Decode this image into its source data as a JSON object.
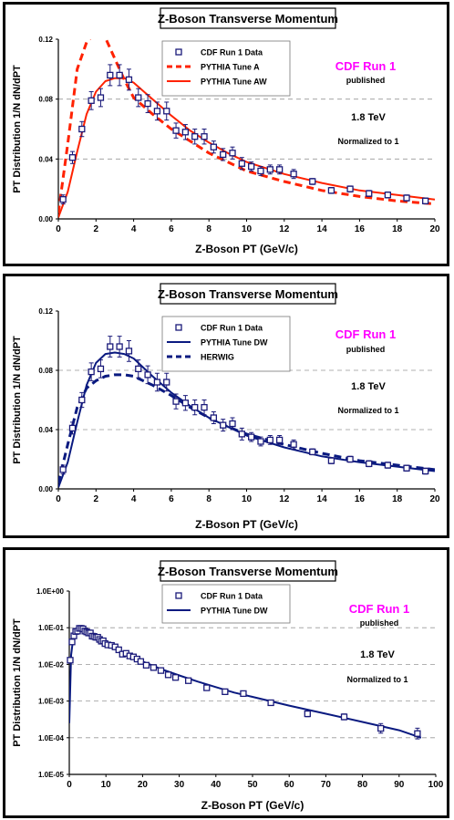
{
  "chart_data": [
    {
      "type": "scatter",
      "title": "Z-Boson Transverse Momentum",
      "xlabel": "Z-Boson PT (GeV/c)",
      "ylabel": "PT Distribution 1/N dN/dPT",
      "xlim": [
        0,
        20
      ],
      "ylim": [
        0,
        0.12
      ],
      "x_ticks": [
        "0",
        "2",
        "4",
        "6",
        "8",
        "10",
        "12",
        "14",
        "16",
        "18",
        "20"
      ],
      "y_ticks": [
        "0.00",
        "0.04",
        "0.08",
        "0.12"
      ],
      "log_scale": false,
      "grid": "horizontal dashed",
      "legend_position": "top-center",
      "annotations": [
        "CDF Run 1",
        "published",
        "1.8 TeV",
        "Normalized to 1"
      ],
      "series": [
        {
          "name": "CDF Run 1 Data",
          "kind": "points",
          "color": "#1a1a7a",
          "x": [
            0.25,
            0.75,
            1.25,
            1.75,
            2.25,
            2.75,
            3.25,
            3.75,
            4.25,
            4.75,
            5.25,
            5.75,
            6.25,
            6.75,
            7.25,
            7.75,
            8.25,
            8.75,
            9.25,
            9.75,
            10.25,
            10.75,
            11.25,
            11.75,
            12.5,
            13.5,
            14.5,
            15.5,
            16.5,
            17.5,
            18.5,
            19.5
          ],
          "y": [
            0.013,
            0.041,
            0.06,
            0.079,
            0.081,
            0.096,
            0.096,
            0.093,
            0.081,
            0.077,
            0.072,
            0.072,
            0.059,
            0.058,
            0.055,
            0.055,
            0.048,
            0.043,
            0.044,
            0.037,
            0.035,
            0.032,
            0.033,
            0.033,
            0.03,
            0.025,
            0.019,
            0.02,
            0.017,
            0.016,
            0.014,
            0.012
          ],
          "err": [
            0.003,
            0.004,
            0.005,
            0.006,
            0.006,
            0.007,
            0.007,
            0.007,
            0.006,
            0.006,
            0.006,
            0.006,
            0.005,
            0.005,
            0.005,
            0.005,
            0.004,
            0.004,
            0.004,
            0.004,
            0.003,
            0.003,
            0.003,
            0.003,
            0.003,
            0.002,
            0.002,
            0.002,
            0.002,
            0.002,
            0.002,
            0.002
          ]
        },
        {
          "name": "PYTHIA Tune A",
          "kind": "dashed",
          "color": "#ff2200",
          "x": [
            0,
            0.5,
            1,
            1.5,
            2,
            2.5,
            3,
            3.5,
            4,
            5,
            6,
            7,
            8,
            9,
            10,
            12,
            14,
            16,
            18,
            20
          ],
          "y": [
            0.004,
            0.05,
            0.1,
            0.118,
            0.125,
            0.121,
            0.107,
            0.093,
            0.081,
            0.07,
            0.06,
            0.052,
            0.044,
            0.038,
            0.032,
            0.025,
            0.019,
            0.015,
            0.012,
            0.01
          ]
        },
        {
          "name": "PYTHIA Tune AW",
          "kind": "solid",
          "color": "#ff2200",
          "x": [
            0,
            0.5,
            1,
            1.5,
            2,
            2.5,
            3,
            3.5,
            4,
            5,
            6,
            7,
            8,
            9,
            10,
            12,
            14,
            16,
            18,
            20
          ],
          "y": [
            0.001,
            0.018,
            0.045,
            0.07,
            0.085,
            0.092,
            0.094,
            0.094,
            0.091,
            0.08,
            0.069,
            0.059,
            0.051,
            0.044,
            0.038,
            0.03,
            0.024,
            0.019,
            0.016,
            0.013
          ]
        }
      ]
    },
    {
      "type": "scatter",
      "title": "Z-Boson Transverse Momentum",
      "xlabel": "Z-Boson PT (GeV/c)",
      "ylabel": "PT Distribution 1/N dN/dPT",
      "xlim": [
        0,
        20
      ],
      "ylim": [
        0,
        0.12
      ],
      "x_ticks": [
        "0",
        "2",
        "4",
        "6",
        "8",
        "10",
        "12",
        "14",
        "16",
        "18",
        "20"
      ],
      "y_ticks": [
        "0.00",
        "0.04",
        "0.08",
        "0.12"
      ],
      "log_scale": false,
      "grid": "horizontal dashed",
      "legend_position": "top-center",
      "annotations": [
        "CDF Run 1",
        "published",
        "1.8 TeV",
        "Normalized to 1"
      ],
      "series": [
        {
          "name": "CDF Run 1 Data",
          "kind": "points",
          "color": "#1a1a7a",
          "x": [
            0.25,
            0.75,
            1.25,
            1.75,
            2.25,
            2.75,
            3.25,
            3.75,
            4.25,
            4.75,
            5.25,
            5.75,
            6.25,
            6.75,
            7.25,
            7.75,
            8.25,
            8.75,
            9.25,
            9.75,
            10.25,
            10.75,
            11.25,
            11.75,
            12.5,
            13.5,
            14.5,
            15.5,
            16.5,
            17.5,
            18.5,
            19.5
          ],
          "y": [
            0.013,
            0.041,
            0.06,
            0.079,
            0.081,
            0.096,
            0.096,
            0.093,
            0.081,
            0.077,
            0.072,
            0.072,
            0.059,
            0.058,
            0.055,
            0.055,
            0.048,
            0.043,
            0.044,
            0.037,
            0.035,
            0.032,
            0.033,
            0.033,
            0.03,
            0.025,
            0.019,
            0.02,
            0.017,
            0.016,
            0.014,
            0.012
          ],
          "err": [
            0.003,
            0.004,
            0.005,
            0.006,
            0.006,
            0.007,
            0.007,
            0.007,
            0.006,
            0.006,
            0.006,
            0.006,
            0.005,
            0.005,
            0.005,
            0.005,
            0.004,
            0.004,
            0.004,
            0.004,
            0.003,
            0.003,
            0.003,
            0.003,
            0.003,
            0.002,
            0.002,
            0.002,
            0.002,
            0.002,
            0.002,
            0.002
          ]
        },
        {
          "name": "PYTHIA Tune DW",
          "kind": "solid",
          "color": "#0a1a80",
          "x": [
            0,
            0.5,
            1,
            1.5,
            2,
            2.5,
            3,
            3.5,
            4,
            5,
            6,
            7,
            8,
            9,
            10,
            12,
            14,
            16,
            18,
            20
          ],
          "y": [
            0.001,
            0.018,
            0.045,
            0.07,
            0.085,
            0.091,
            0.092,
            0.091,
            0.088,
            0.076,
            0.065,
            0.056,
            0.048,
            0.042,
            0.036,
            0.028,
            0.022,
            0.018,
            0.015,
            0.012
          ]
        },
        {
          "name": "HERWIG",
          "kind": "dashed",
          "color": "#0a1a80",
          "x": [
            0,
            0.5,
            1,
            1.5,
            2,
            2.5,
            3,
            3.5,
            4,
            5,
            6,
            7,
            8,
            9,
            10,
            12,
            14,
            16,
            18,
            20
          ],
          "y": [
            0.004,
            0.03,
            0.055,
            0.068,
            0.073,
            0.076,
            0.077,
            0.077,
            0.076,
            0.07,
            0.063,
            0.055,
            0.048,
            0.042,
            0.037,
            0.03,
            0.024,
            0.019,
            0.016,
            0.013
          ]
        }
      ]
    },
    {
      "type": "scatter",
      "title": "Z-Boson Transverse Momentum",
      "xlabel": "Z-Boson PT (GeV/c)",
      "ylabel": "PT Distribution 1/N dN/dPT",
      "xlim": [
        0,
        100
      ],
      "ylim": [
        1e-05,
        1
      ],
      "x_ticks": [
        "0",
        "10",
        "20",
        "30",
        "40",
        "50",
        "60",
        "70",
        "80",
        "90",
        "100"
      ],
      "y_ticks": [
        "1.0E-05",
        "1.0E-04",
        "1.0E-03",
        "1.0E-02",
        "1.0E-01",
        "1.0E+00"
      ],
      "log_scale": true,
      "grid": "horizontal dashed",
      "legend_position": "top-center",
      "annotations": [
        "CDF Run 1",
        "published",
        "1.8 TeV",
        "Normalized to 1"
      ],
      "series": [
        {
          "name": "CDF Run 1 Data",
          "kind": "points",
          "color": "#1a1a7a",
          "x": [
            0.25,
            0.75,
            1.25,
            1.75,
            2.25,
            2.75,
            3.25,
            3.75,
            4.25,
            4.75,
            5.25,
            5.75,
            6.25,
            6.75,
            7.25,
            7.75,
            8.25,
            8.75,
            9.25,
            9.75,
            10.5,
            11.5,
            12.5,
            13.5,
            14.5,
            15.5,
            16.5,
            17.5,
            18.5,
            19.5,
            21,
            23,
            25,
            27,
            29,
            32.5,
            37.5,
            42.5,
            47.5,
            55,
            65,
            75,
            85,
            95
          ],
          "y": [
            0.013,
            0.041,
            0.06,
            0.079,
            0.081,
            0.096,
            0.096,
            0.093,
            0.081,
            0.077,
            0.072,
            0.072,
            0.059,
            0.058,
            0.055,
            0.055,
            0.048,
            0.043,
            0.044,
            0.037,
            0.034,
            0.033,
            0.03,
            0.025,
            0.019,
            0.02,
            0.017,
            0.016,
            0.014,
            0.012,
            0.0095,
            0.0082,
            0.0068,
            0.0052,
            0.0044,
            0.0036,
            0.0023,
            0.0018,
            0.0016,
            0.0009,
            0.00045,
            0.00037,
            0.00018,
            0.00013
          ],
          "err_factor": [
            1.1,
            1.1,
            1.1,
            1.1,
            1.1,
            1.1,
            1.1,
            1.1,
            1.1,
            1.1,
            1.1,
            1.1,
            1.1,
            1.1,
            1.1,
            1.1,
            1.1,
            1.1,
            1.1,
            1.1,
            1.1,
            1.1,
            1.1,
            1.1,
            1.1,
            1.1,
            1.1,
            1.1,
            1.1,
            1.1,
            1.1,
            1.1,
            1.1,
            1.1,
            1.1,
            1.1,
            1.1,
            1.12,
            1.12,
            1.15,
            1.2,
            1.2,
            1.35,
            1.4
          ]
        },
        {
          "name": "PYTHIA Tune DW",
          "kind": "solid",
          "color": "#0a1a80",
          "x": [
            0,
            0.5,
            1,
            1.5,
            2,
            3,
            4,
            5,
            6,
            8,
            10,
            12,
            14,
            16,
            18,
            20,
            25,
            30,
            35,
            40,
            45,
            50,
            60,
            70,
            80,
            90,
            96
          ],
          "y": [
            0.00025,
            0.018,
            0.045,
            0.07,
            0.085,
            0.092,
            0.088,
            0.076,
            0.065,
            0.048,
            0.036,
            0.028,
            0.022,
            0.018,
            0.015,
            0.012,
            0.0075,
            0.005,
            0.0034,
            0.0024,
            0.0017,
            0.0013,
            0.00075,
            0.00045,
            0.00027,
            0.00016,
            0.0001
          ]
        }
      ]
    }
  ]
}
